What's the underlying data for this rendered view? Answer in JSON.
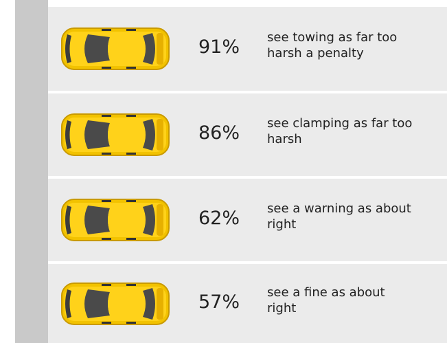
{
  "items": [
    {
      "percent": "91%",
      "lines": [
        "see towing as far too",
        "harsh a penalty"
      ]
    },
    {
      "percent": "86%",
      "lines": [
        "see clamping as far too",
        "harsh"
      ]
    },
    {
      "percent": "62%",
      "lines": [
        "see a warning as about",
        "right"
      ]
    },
    {
      "percent": "57%",
      "lines": [
        "see a fine as about",
        "right"
      ]
    }
  ]
}
